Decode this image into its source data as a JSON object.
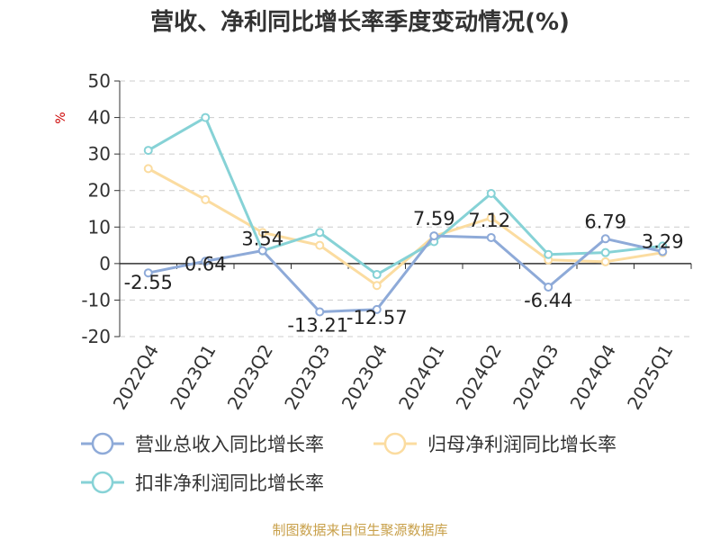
{
  "chart_data": {
    "type": "line",
    "title": "营收、净利同比增长率季度变动情况(%)",
    "ylabel": "%",
    "ylim": [
      -20,
      50
    ],
    "yticks": [
      50,
      40,
      30,
      20,
      10,
      0,
      -10,
      -20
    ],
    "grid": true,
    "legend_position": "bottom",
    "categories": [
      "2022Q4",
      "2023Q1",
      "2023Q2",
      "2023Q3",
      "2023Q4",
      "2024Q1",
      "2024Q2",
      "2024Q3",
      "2024Q4",
      "2025Q1"
    ],
    "series": [
      {
        "name": "营业总收入同比增长率",
        "color": "#8eaad8",
        "values": [
          -2.55,
          0.64,
          3.54,
          -13.21,
          -12.57,
          7.59,
          7.12,
          -6.44,
          6.79,
          3.29
        ],
        "labels": [
          "-2.55",
          "0.64",
          "3.54",
          "-13.21",
          "-12.57",
          "7.59",
          "7.12",
          "-6.44",
          "6.79",
          "3.29"
        ]
      },
      {
        "name": "归母净利润同比增长率",
        "color": "#fbdca0",
        "values": [
          26,
          17.5,
          8.5,
          5,
          -6,
          7.5,
          12.5,
          1,
          0.5,
          3
        ]
      },
      {
        "name": "扣非净利润同比增长率",
        "color": "#86d2d6",
        "values": [
          31,
          40,
          3.5,
          8.5,
          -3,
          6,
          19.2,
          2.5,
          3,
          4.8
        ]
      }
    ],
    "source": "制图数据来自恒生聚源数据库"
  }
}
